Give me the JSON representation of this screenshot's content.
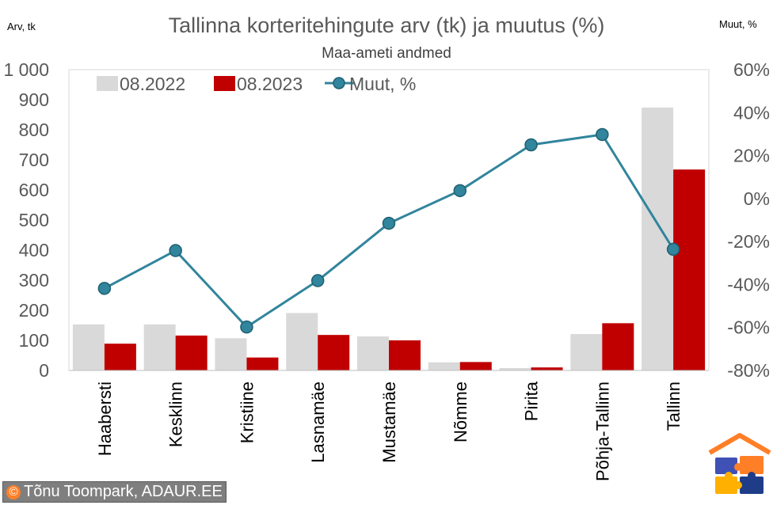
{
  "chart_data": {
    "type": "bar+line",
    "title": "Tallinna korteritehingute arv (tk) ja muutus (%)",
    "subtitle": "Maa-ameti andmed",
    "y_left_label": "Arv, tk",
    "y_right_label": "Muut, %",
    "categories": [
      "Haabersti",
      "Kesklinn",
      "Kristiine",
      "Lasnamäe",
      "Mustamäe",
      "Nõmme",
      "Pirita",
      "Põhja-Tallinn",
      "Tallinn"
    ],
    "series": [
      {
        "name": "08.2022",
        "type": "bar",
        "axis": "left",
        "color": "#d9d9d9",
        "values": [
          153,
          153,
          107,
          191,
          113,
          27,
          8,
          121,
          874
        ]
      },
      {
        "name": "08.2023",
        "type": "bar",
        "axis": "left",
        "color": "#c00000",
        "values": [
          89,
          116,
          43,
          118,
          100,
          28,
          10,
          157,
          668
        ]
      },
      {
        "name": "Muut, %",
        "type": "line",
        "axis": "right",
        "color": "#31859c",
        "values": [
          -41.8,
          -24.2,
          -59.8,
          -38.2,
          -11.5,
          3.7,
          25.0,
          29.8,
          -23.6
        ]
      }
    ],
    "y_left": {
      "min": 0,
      "max": 1000,
      "step": 100,
      "tick_labels": [
        "0",
        "100",
        "200",
        "300",
        "400",
        "500",
        "600",
        "700",
        "800",
        "900",
        "1 000"
      ]
    },
    "y_right": {
      "min": -80,
      "max": 60,
      "step": 20,
      "tick_labels": [
        "-80%",
        "-60%",
        "-40%",
        "-20%",
        "0%",
        "20%",
        "40%",
        "60%"
      ]
    },
    "legend_position": "top-left",
    "grid": false
  },
  "credit": {
    "copyright_symbol": "©",
    "text": "Tõnu Toompark, ADAUR.EE"
  },
  "logo": {
    "icon": "house-puzzle-logo-icon",
    "colors": [
      "#ff7f27",
      "#3f51b5",
      "#ffb000",
      "#1f3c88"
    ]
  }
}
